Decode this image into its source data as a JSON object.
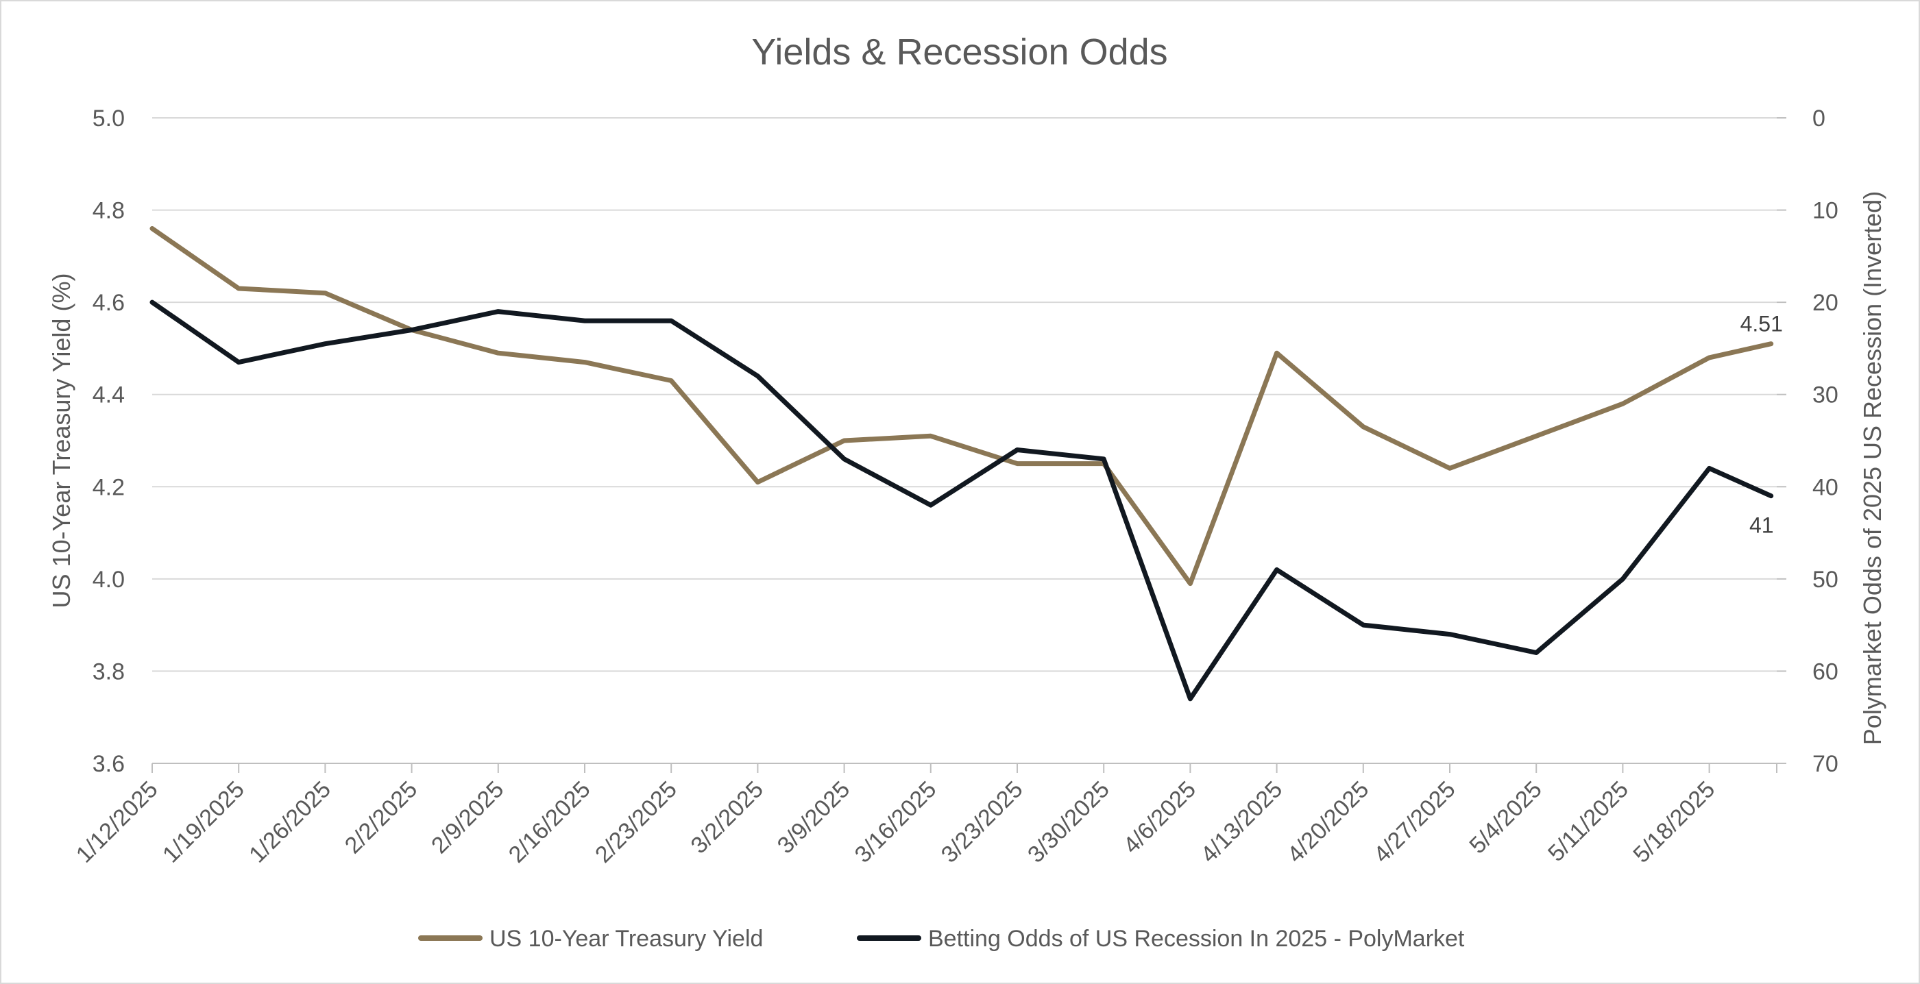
{
  "chart_data": {
    "type": "line",
    "title": "Yields & Recession Odds",
    "x": [
      "1/12/2025",
      "1/19/2025",
      "1/26/2025",
      "2/2/2025",
      "2/9/2025",
      "2/16/2025",
      "2/23/2025",
      "3/2/2025",
      "3/9/2025",
      "3/16/2025",
      "3/23/2025",
      "3/30/2025",
      "4/6/2025",
      "4/13/2025",
      "4/20/2025",
      "4/27/2025",
      "5/4/2025",
      "5/11/2025",
      "5/18/2025"
    ],
    "y_left": {
      "label": "US 10-Year Treasury Yield (%)",
      "ylim": [
        3.6,
        5.0
      ],
      "ticks": [
        "3.6",
        "3.8",
        "4.0",
        "4.2",
        "4.4",
        "4.6",
        "4.8",
        "5.0"
      ]
    },
    "y_right": {
      "label": "Polymarket Odds of 2025 US Recession (Inverted)",
      "ylim": [
        0,
        70
      ],
      "inverted": true,
      "ticks": [
        "0",
        "10",
        "20",
        "30",
        "40",
        "50",
        "60",
        "70"
      ]
    },
    "grid": true,
    "legend_position": "bottom",
    "series": [
      {
        "name": "US 10-Year Treasury Yield",
        "axis": "left",
        "color": "#8B7755",
        "points": [
          {
            "x": "1/12/2025",
            "y": 4.76
          },
          {
            "x": "1/19/2025",
            "y": 4.63
          },
          {
            "x": "1/26/2025",
            "y": 4.62
          },
          {
            "x": "2/2/2025",
            "y": 4.54
          },
          {
            "x": "2/9/2025",
            "y": 4.49
          },
          {
            "x": "2/16/2025",
            "y": 4.47
          },
          {
            "x": "2/23/2025",
            "y": 4.43
          },
          {
            "x": "3/2/2025",
            "y": 4.21
          },
          {
            "x": "3/9/2025",
            "y": 4.3
          },
          {
            "x": "3/16/2025",
            "y": 4.31
          },
          {
            "x": "3/23/2025",
            "y": 4.25
          },
          {
            "x": "3/30/2025",
            "y": 4.25
          },
          {
            "x": "4/6/2025",
            "y": 3.99
          },
          {
            "x": "4/13/2025",
            "y": 4.49
          },
          {
            "x": "4/20/2025",
            "y": 4.33
          },
          {
            "x": "4/27/2025",
            "y": 4.24
          },
          {
            "x": "5/4/2025",
            "y": 4.31
          },
          {
            "x": "5/11/2025",
            "y": 4.38
          },
          {
            "x": "5/18/2025",
            "y": 4.48
          },
          {
            "x": "5/23/2025",
            "y": 4.51
          }
        ],
        "end_label": "4.51"
      },
      {
        "name": "Betting Odds of US Recession In 2025 - PolyMarket",
        "axis": "right",
        "color": "#111820",
        "points": [
          {
            "x": "1/12/2025",
            "y": 20
          },
          {
            "x": "1/19/2025",
            "y": 26.5
          },
          {
            "x": "1/26/2025",
            "y": 24.5
          },
          {
            "x": "2/2/2025",
            "y": 23
          },
          {
            "x": "2/9/2025",
            "y": 21
          },
          {
            "x": "2/16/2025",
            "y": 22
          },
          {
            "x": "2/23/2025",
            "y": 22
          },
          {
            "x": "3/2/2025",
            "y": 28
          },
          {
            "x": "3/9/2025",
            "y": 37
          },
          {
            "x": "3/16/2025",
            "y": 42
          },
          {
            "x": "3/23/2025",
            "y": 36
          },
          {
            "x": "3/30/2025",
            "y": 37
          },
          {
            "x": "4/6/2025",
            "y": 63
          },
          {
            "x": "4/13/2025",
            "y": 49
          },
          {
            "x": "4/20/2025",
            "y": 55
          },
          {
            "x": "4/27/2025",
            "y": 56
          },
          {
            "x": "5/4/2025",
            "y": 58
          },
          {
            "x": "5/11/2025",
            "y": 50
          },
          {
            "x": "5/18/2025",
            "y": 38
          },
          {
            "x": "5/23/2025",
            "y": 41
          }
        ],
        "end_label": "41"
      }
    ]
  }
}
